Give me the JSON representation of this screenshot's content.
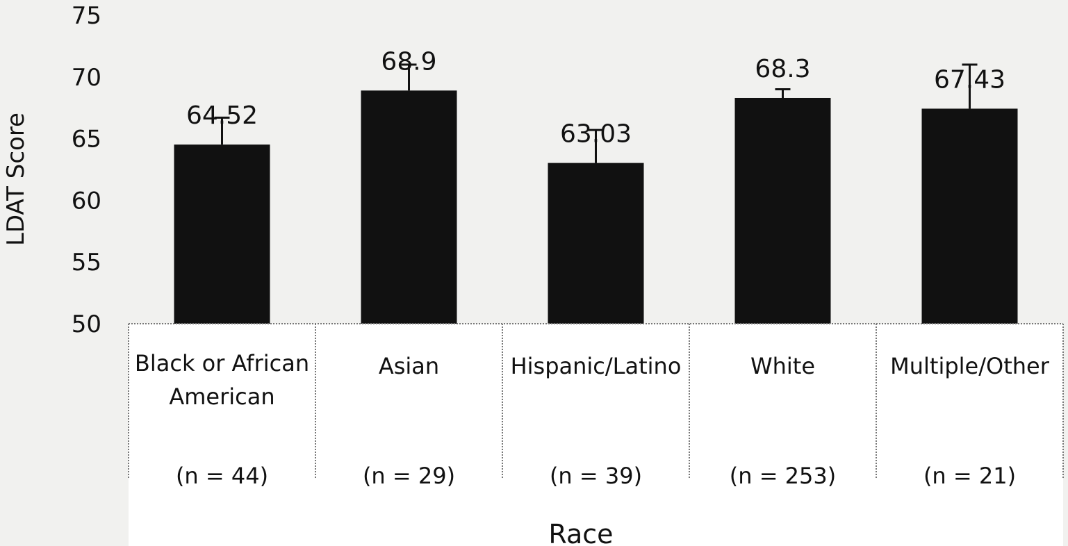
{
  "chart_data": {
    "type": "bar",
    "title": "",
    "xlabel": "Race",
    "ylabel": "LDAT Score",
    "ylim": [
      50,
      75
    ],
    "yticks": [
      50,
      55,
      60,
      65,
      70,
      75
    ],
    "grid": false,
    "legend": "none",
    "bar_color": "#111111",
    "categories": [
      {
        "name_lines": [
          "Black or African",
          "American"
        ],
        "n_label": "(n = 44)"
      },
      {
        "name_lines": [
          "Asian"
        ],
        "n_label": "(n = 29)"
      },
      {
        "name_lines": [
          "Hispanic/Latino"
        ],
        "n_label": "(n = 39)"
      },
      {
        "name_lines": [
          "White"
        ],
        "n_label": "(n = 253)"
      },
      {
        "name_lines": [
          "Multiple/Other"
        ],
        "n_label": "(n = 21)"
      }
    ],
    "values": [
      64.52,
      68.9,
      63.03,
      68.3,
      67.43
    ],
    "value_labels": [
      "64.52",
      "68.9",
      "63.03",
      "68.3",
      "67.43"
    ],
    "error_upper": [
      66.7,
      71.0,
      65.7,
      69.0,
      71.0
    ]
  }
}
